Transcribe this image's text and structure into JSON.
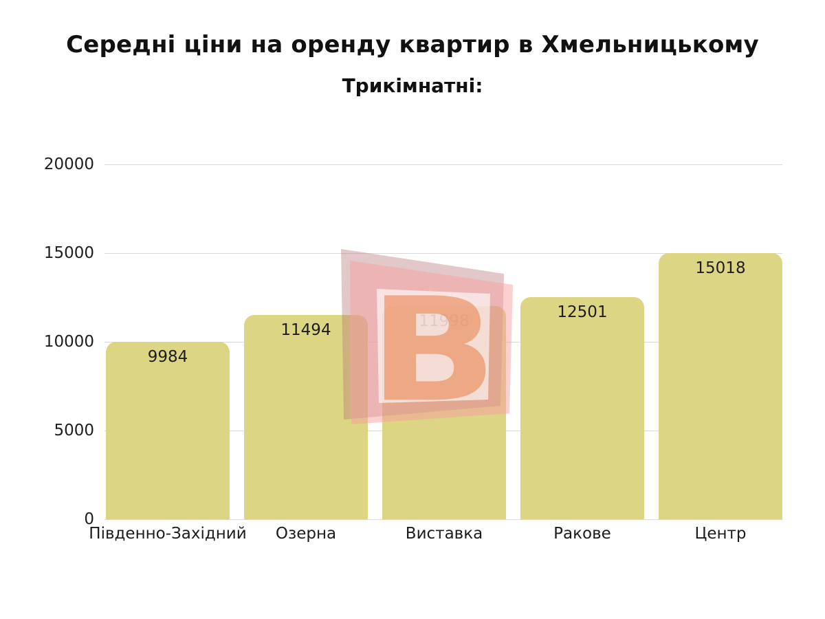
{
  "header": {
    "title": "Середні ціни на оренду квартир в Хмельницькому",
    "subtitle": "Трикімнатні:"
  },
  "watermark": {
    "letter": "B",
    "back_square_color": "rgba(185,125,125,0.42)",
    "front_square_color": "rgba(246,160,160,0.5)",
    "inner_square_color": "rgba(255,255,255,0.62)",
    "letter_color": "rgba(232,125,70,0.55)"
  },
  "chart_data": {
    "type": "bar",
    "title": "Середні ціни на оренду квартир в Хмельницькому",
    "subtitle": "Трикімнатні:",
    "categories": [
      "Південно-Західний",
      "Озерна",
      "Виставка",
      "Ракове",
      "Центр"
    ],
    "values": [
      9984,
      11494,
      11998,
      12501,
      15018
    ],
    "value_labels": [
      "9984",
      "11494",
      "11998",
      "12501",
      "15018"
    ],
    "xlabel": "",
    "ylabel": "",
    "ylim": [
      0,
      20000
    ],
    "yticks": [
      0,
      5000,
      10000,
      15000,
      20000
    ],
    "ytick_labels": [
      "0",
      "5000",
      "10000",
      "15000",
      "20000"
    ],
    "grid": true,
    "legend": false,
    "bar_color": "#dcd584",
    "grid_color": "#d9d9d9",
    "label_color": "#1d1d1d"
  }
}
